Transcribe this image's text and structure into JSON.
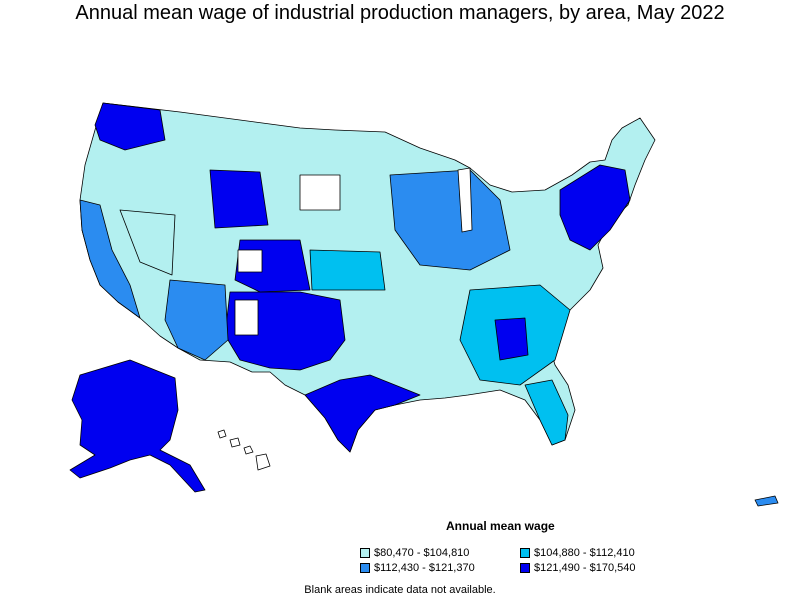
{
  "title": "Annual mean wage of industrial production managers, by area, May 2022",
  "legend": {
    "title": "Annual mean wage",
    "items": [
      {
        "label": "$80,470 - $104,810",
        "color": "#b3f0f0"
      },
      {
        "label": "$104,880 - $112,410",
        "color": "#00c0f0"
      },
      {
        "label": "$112,430 - $121,370",
        "color": "#2b8cf0"
      },
      {
        "label": "$121,490 - $170,540",
        "color": "#0000f0"
      }
    ]
  },
  "no_data_color": "#ffffff",
  "footnote": "Blank areas indicate data not available."
}
